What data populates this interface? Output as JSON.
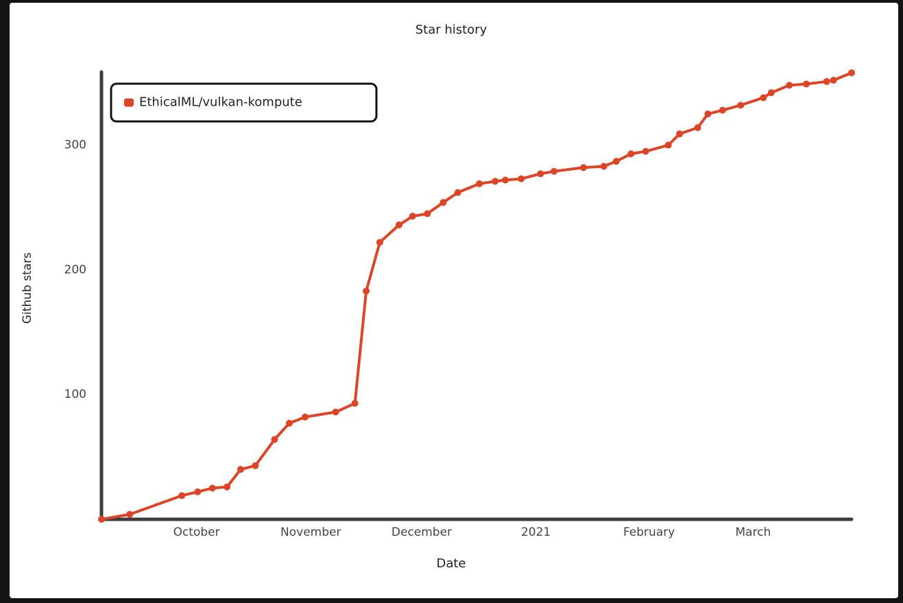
{
  "chart_data": {
    "type": "line",
    "title": "Star history",
    "x_label": "Date",
    "y_label": "Github stars",
    "grid": false,
    "legend": "upper left",
    "xlim": [
      9.16,
      15.79
    ],
    "ylim": [
      0,
      358.6
    ],
    "xticks": [
      {
        "value": 10,
        "label": "October"
      },
      {
        "value": 11.01,
        "label": "November"
      },
      {
        "value": 11.99,
        "label": "December"
      },
      {
        "value": 13.0,
        "label": "2021"
      },
      {
        "value": 14.0,
        "label": "February"
      },
      {
        "value": 14.92,
        "label": "March"
      }
    ],
    "yticks": [
      100,
      200,
      300
    ],
    "series": [
      {
        "name": "EthicalML/vulkan-kompute",
        "color": "#dd4528",
        "x": [
          9.16,
          9.41,
          9.87,
          10.01,
          10.14,
          10.27,
          10.39,
          10.52,
          10.69,
          10.82,
          10.96,
          11.23,
          11.4,
          11.5,
          11.62,
          11.79,
          11.91,
          12.04,
          12.18,
          12.31,
          12.5,
          12.64,
          12.73,
          12.87,
          13.04,
          13.16,
          13.42,
          13.6,
          13.71,
          13.84,
          13.97,
          14.17,
          14.27,
          14.43,
          14.52,
          14.65,
          14.81,
          15.01,
          15.08,
          15.24,
          15.39,
          15.57,
          15.63,
          15.79
        ],
        "values": [
          0,
          4,
          19,
          22,
          25,
          26,
          40,
          43,
          64,
          77,
          82,
          86,
          93,
          183,
          222,
          236,
          243,
          245,
          254,
          262,
          269,
          271,
          272,
          273,
          277,
          279,
          282,
          283,
          287,
          293,
          295,
          300,
          309,
          314,
          325,
          328,
          332,
          338,
          342,
          348,
          349,
          351,
          352,
          358
        ]
      }
    ]
  }
}
